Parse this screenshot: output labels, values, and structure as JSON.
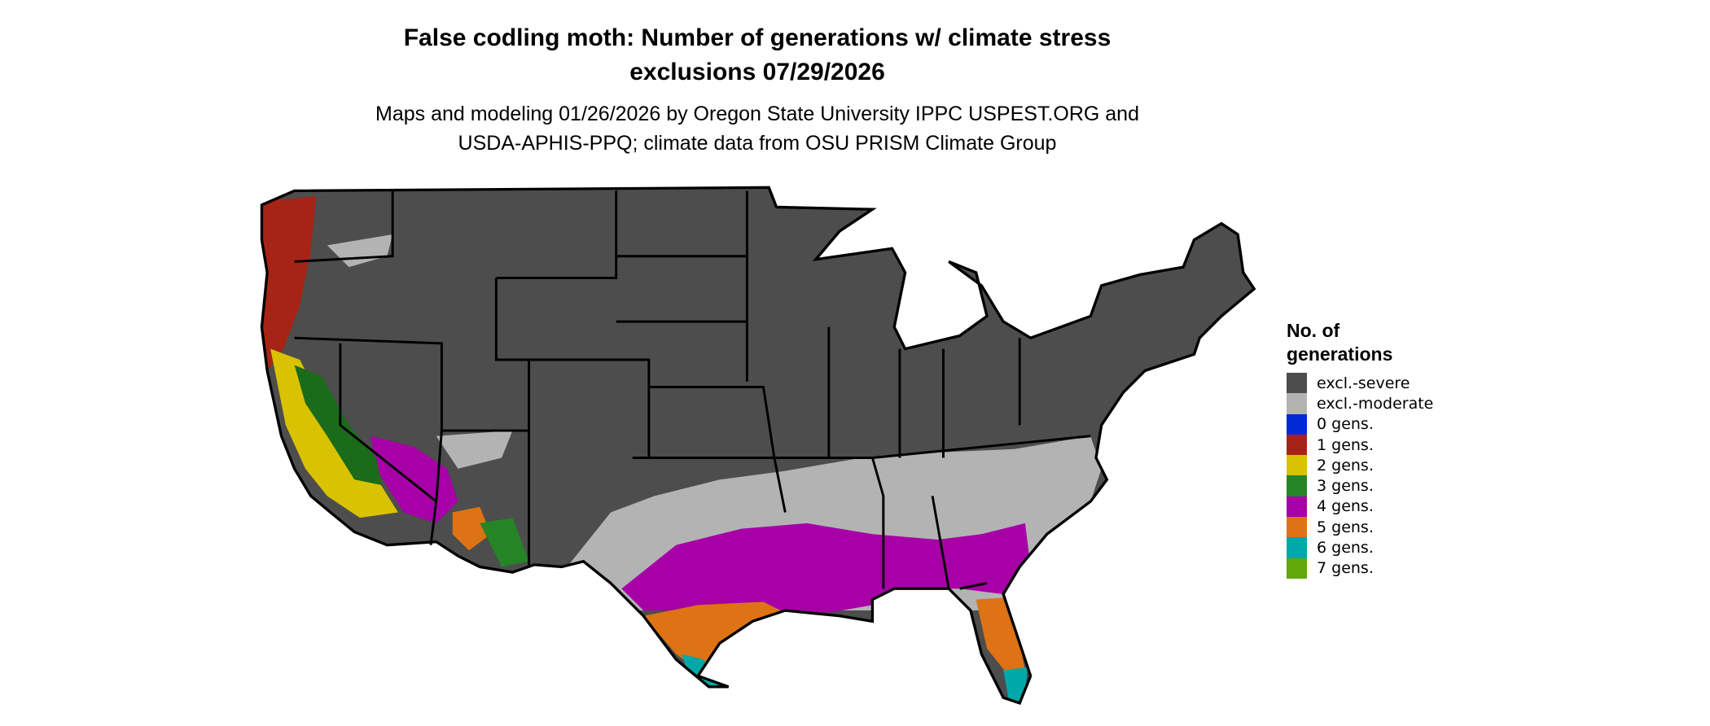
{
  "title": {
    "line1": "False codling moth: Number of generations w/ climate stress",
    "line2": "exclusions 07/29/2026"
  },
  "subtitle": {
    "line1": "Maps and modeling 01/26/2026 by Oregon State University IPPC USPEST.ORG and",
    "line2": "USDA-APHIS-PPQ; climate data from OSU PRISM Climate Group"
  },
  "legend": {
    "title_line1": "No. of",
    "title_line2": "generations",
    "items": [
      {
        "label": "excl.-severe",
        "color": "#4d4d4d"
      },
      {
        "label": "excl.-moderate",
        "color": "#b3b3b3"
      },
      {
        "label": "0 gens.",
        "color": "#0029d6"
      },
      {
        "label": "1 gens.",
        "color": "#a62416"
      },
      {
        "label": "2 gens.",
        "color": "#d9c200"
      },
      {
        "label": "3 gens.",
        "color": "#258426"
      },
      {
        "label": "4 gens.",
        "color": "#a600a6"
      },
      {
        "label": "5 gens.",
        "color": "#dd7314"
      },
      {
        "label": "6 gens.",
        "color": "#00a8a8"
      },
      {
        "label": "7 gens.",
        "color": "#62a80a"
      }
    ]
  }
}
